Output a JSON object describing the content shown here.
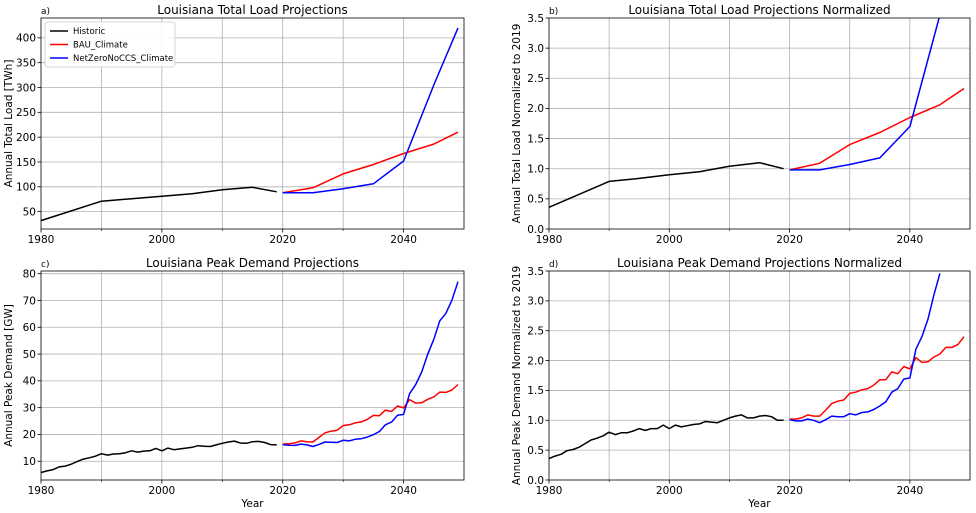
{
  "colors": {
    "historic": "#000000",
    "bau": "#ff0000",
    "nzc": "#0000ff",
    "grid": "#b0b0b0"
  },
  "legend": {
    "placement": "upper-left of panel a",
    "entries": [
      {
        "label": "Historic",
        "color": "#000000"
      },
      {
        "label": "BAU_Climate",
        "color": "#ff0000"
      },
      {
        "label": "NetZeroNoCCS_Climate",
        "color": "#0000ff"
      }
    ]
  },
  "chart_data": [
    {
      "type": "line",
      "panel_letter": "a)",
      "title": "Louisiana Total Load Projections",
      "xlabel": "",
      "ylabel": "Annual Total Load [TWh]",
      "xlim": [
        1980,
        2050
      ],
      "ylim": [
        15,
        440
      ],
      "xticks": [
        1980,
        2000,
        2020,
        2040
      ],
      "yticks": [
        50,
        100,
        150,
        200,
        250,
        300,
        350,
        400
      ],
      "grid": true,
      "series": [
        {
          "name": "Historic",
          "color": "#000000",
          "x": [
            1980,
            1990,
            1995,
            2000,
            2005,
            2010,
            2015,
            2019
          ],
          "y": [
            32,
            71,
            76,
            81,
            86,
            94,
            99,
            90
          ]
        },
        {
          "name": "BAU_Climate",
          "color": "#ff0000",
          "x": [
            2020,
            2025,
            2030,
            2035,
            2040,
            2045,
            2049
          ],
          "y": [
            88,
            98,
            126,
            145,
            167,
            186,
            210
          ]
        },
        {
          "name": "NetZeroNoCCS_Climate",
          "color": "#0000ff",
          "x": [
            2020,
            2025,
            2030,
            2035,
            2040,
            2045,
            2049
          ],
          "y": [
            88,
            88,
            96,
            106,
            152,
            305,
            420
          ]
        }
      ]
    },
    {
      "type": "line",
      "panel_letter": "b)",
      "title": "Louisiana Total Load Projections Normalized",
      "xlabel": "",
      "ylabel": "Annual Total Load Normalized to 2019",
      "xlim": [
        1980,
        2050
      ],
      "ylim": [
        0,
        3.5
      ],
      "xticks": [
        1980,
        2000,
        2020,
        2040
      ],
      "yticks": [
        "0.0",
        "0.5",
        "1.0",
        "1.5",
        "2.0",
        "2.5",
        "3.0",
        "3.5"
      ],
      "grid": true,
      "series": [
        {
          "name": "Historic",
          "color": "#000000",
          "x": [
            1980,
            1990,
            1995,
            2000,
            2005,
            2010,
            2015,
            2019
          ],
          "y": [
            0.36,
            0.79,
            0.84,
            0.9,
            0.95,
            1.04,
            1.1,
            1.0
          ]
        },
        {
          "name": "BAU_Climate",
          "color": "#ff0000",
          "x": [
            2020,
            2025,
            2030,
            2035,
            2040,
            2045,
            2049
          ],
          "y": [
            0.98,
            1.09,
            1.4,
            1.6,
            1.85,
            2.06,
            2.33
          ]
        },
        {
          "name": "NetZeroNoCCS_Climate",
          "color": "#0000ff",
          "x": [
            2020,
            2025,
            2030,
            2035,
            2040,
            2045
          ],
          "y": [
            0.98,
            0.98,
            1.07,
            1.18,
            1.7,
            3.55
          ]
        }
      ]
    },
    {
      "type": "line",
      "panel_letter": "c)",
      "title": "Louisiana Peak Demand Projections",
      "xlabel": "Year",
      "ylabel": "Annual Peak Demand [GW]",
      "xlim": [
        1980,
        2050
      ],
      "ylim": [
        3,
        81
      ],
      "xticks": [
        1980,
        2000,
        2020,
        2040
      ],
      "yticks": [
        10,
        20,
        30,
        40,
        50,
        60,
        70,
        80
      ],
      "grid": true,
      "series": [
        {
          "name": "Historic",
          "color": "#000000",
          "x": [
            1980,
            1981,
            1982,
            1983,
            1984,
            1985,
            1986,
            1987,
            1988,
            1989,
            1990,
            1991,
            1992,
            1993,
            1994,
            1995,
            1996,
            1997,
            1998,
            1999,
            2000,
            2001,
            2002,
            2003,
            2004,
            2005,
            2006,
            2007,
            2008,
            2009,
            2010,
            2011,
            2012,
            2013,
            2014,
            2015,
            2016,
            2017,
            2018,
            2019
          ],
          "y": [
            5.8,
            6.4,
            6.9,
            7.9,
            8.2,
            8.9,
            9.9,
            10.8,
            11.3,
            11.9,
            12.8,
            12.3,
            12.7,
            12.8,
            13.2,
            13.9,
            13.4,
            13.8,
            13.9,
            14.8,
            13.9,
            14.9,
            14.3,
            14.6,
            14.9,
            15.2,
            15.8,
            15.6,
            15.5,
            16.1,
            16.7,
            17.2,
            17.5,
            16.8,
            16.7,
            17.3,
            17.4,
            17.0,
            16.2,
            16.1
          ]
        },
        {
          "name": "BAU_Climate",
          "color": "#ff0000",
          "x": [
            2020,
            2021,
            2022,
            2023,
            2024,
            2025,
            2026,
            2027,
            2028,
            2029,
            2030,
            2031,
            2032,
            2033,
            2034,
            2035,
            2036,
            2037,
            2038,
            2039,
            2040,
            2041,
            2042,
            2043,
            2044,
            2045,
            2046,
            2047,
            2048,
            2049
          ],
          "y": [
            16.4,
            16.5,
            16.8,
            17.6,
            17.3,
            17.2,
            18.9,
            20.6,
            21.2,
            21.6,
            23.3,
            23.6,
            24.3,
            24.7,
            25.6,
            27.1,
            27.0,
            29.1,
            28.6,
            30.6,
            29.9,
            33.0,
            31.7,
            31.8,
            33.1,
            34.0,
            35.8,
            35.7,
            36.6,
            38.6
          ]
        },
        {
          "name": "NetZeroNoCCS_Climate",
          "color": "#0000ff",
          "x": [
            2020,
            2021,
            2022,
            2023,
            2024,
            2025,
            2026,
            2027,
            2028,
            2029,
            2030,
            2031,
            2032,
            2033,
            2034,
            2035,
            2036,
            2037,
            2038,
            2039,
            2040,
            2041,
            2042,
            2043,
            2044,
            2045,
            2046,
            2047,
            2048,
            2049
          ],
          "y": [
            16.2,
            16.0,
            15.9,
            16.4,
            16.1,
            15.5,
            16.3,
            17.2,
            17.1,
            17.0,
            17.8,
            17.6,
            18.2,
            18.4,
            19.0,
            19.9,
            21.1,
            23.6,
            24.6,
            27.2,
            27.5,
            35.2,
            38.6,
            43.3,
            49.9,
            55.5,
            62.4,
            65.2,
            70.1,
            77.0
          ]
        }
      ]
    },
    {
      "type": "line",
      "panel_letter": "d)",
      "title": "Louisiana Peak Demand Projections Normalized",
      "xlabel": "Year",
      "ylabel": "Annual Peak Demand Normalized to 2019",
      "xlim": [
        1980,
        2050
      ],
      "ylim": [
        0,
        3.5
      ],
      "xticks": [
        1980,
        2000,
        2020,
        2040
      ],
      "yticks": [
        "0.0",
        "0.5",
        "1.0",
        "1.5",
        "2.0",
        "2.5",
        "3.0",
        "3.5"
      ],
      "grid": true,
      "series": [
        {
          "name": "Historic",
          "color": "#000000",
          "x": [
            1980,
            1981,
            1982,
            1983,
            1984,
            1985,
            1986,
            1987,
            1988,
            1989,
            1990,
            1991,
            1992,
            1993,
            1994,
            1995,
            1996,
            1997,
            1998,
            1999,
            2000,
            2001,
            2002,
            2003,
            2004,
            2005,
            2006,
            2007,
            2008,
            2009,
            2010,
            2011,
            2012,
            2013,
            2014,
            2015,
            2016,
            2017,
            2018,
            2019
          ],
          "y": [
            0.36,
            0.4,
            0.43,
            0.49,
            0.51,
            0.55,
            0.61,
            0.67,
            0.7,
            0.74,
            0.8,
            0.76,
            0.79,
            0.79,
            0.82,
            0.86,
            0.83,
            0.86,
            0.86,
            0.92,
            0.86,
            0.92,
            0.89,
            0.91,
            0.93,
            0.94,
            0.98,
            0.97,
            0.96,
            1.0,
            1.04,
            1.07,
            1.09,
            1.04,
            1.04,
            1.07,
            1.08,
            1.06,
            1.0,
            1.0
          ]
        },
        {
          "name": "BAU_Climate",
          "color": "#ff0000",
          "x": [
            2020,
            2021,
            2022,
            2023,
            2024,
            2025,
            2026,
            2027,
            2028,
            2029,
            2030,
            2031,
            2032,
            2033,
            2034,
            2035,
            2036,
            2037,
            2038,
            2039,
            2040,
            2041,
            2042,
            2043,
            2044,
            2045,
            2046,
            2047,
            2048,
            2049
          ],
          "y": [
            1.02,
            1.02,
            1.04,
            1.09,
            1.07,
            1.07,
            1.17,
            1.28,
            1.32,
            1.34,
            1.45,
            1.47,
            1.51,
            1.53,
            1.59,
            1.68,
            1.68,
            1.81,
            1.78,
            1.9,
            1.86,
            2.05,
            1.97,
            1.98,
            2.06,
            2.11,
            2.22,
            2.22,
            2.27,
            2.4
          ]
        },
        {
          "name": "NetZeroNoCCS_Climate",
          "color": "#0000ff",
          "x": [
            2020,
            2021,
            2022,
            2023,
            2024,
            2025,
            2026,
            2027,
            2028,
            2029,
            2030,
            2031,
            2032,
            2033,
            2034,
            2035,
            2036,
            2037,
            2038,
            2039,
            2040,
            2041,
            2042,
            2043,
            2044,
            2045
          ],
          "y": [
            1.01,
            0.99,
            0.99,
            1.02,
            1.0,
            0.96,
            1.01,
            1.07,
            1.06,
            1.06,
            1.11,
            1.09,
            1.13,
            1.14,
            1.18,
            1.24,
            1.31,
            1.47,
            1.53,
            1.69,
            1.71,
            2.19,
            2.4,
            2.69,
            3.1,
            3.46
          ]
        }
      ]
    }
  ]
}
